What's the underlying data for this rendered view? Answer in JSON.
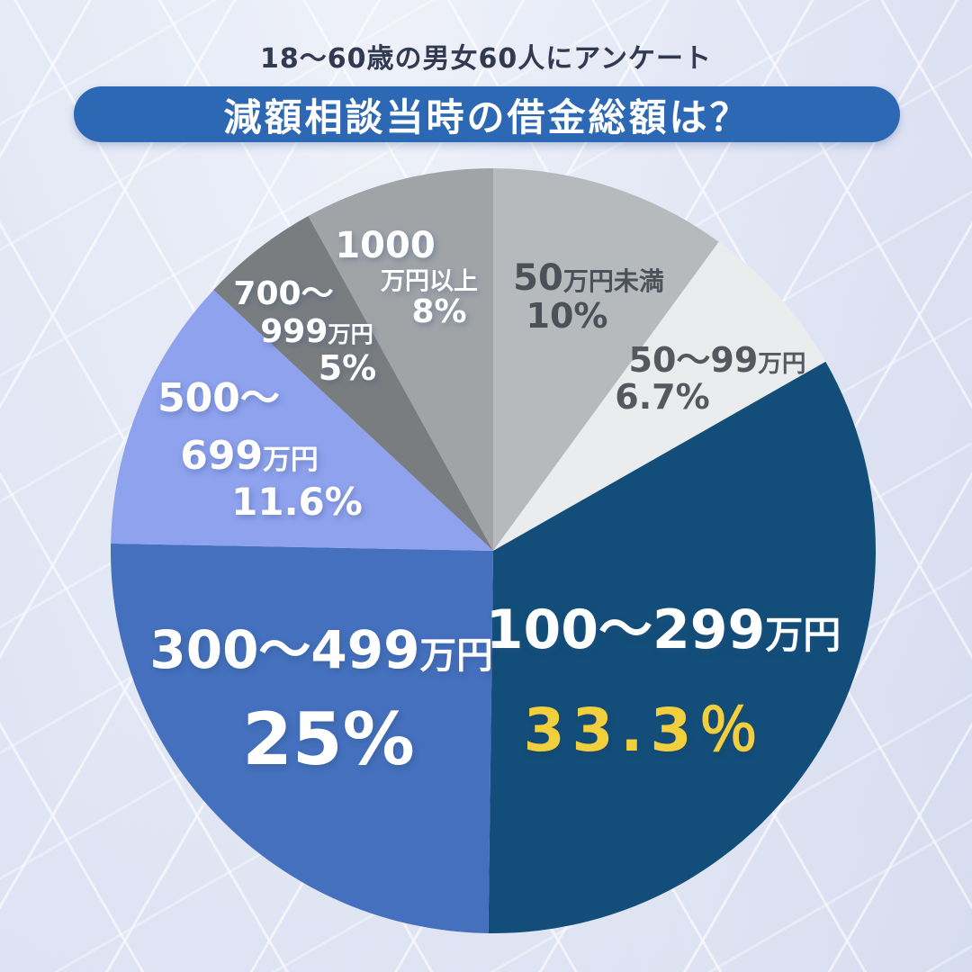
{
  "header": {
    "subtitle": "18〜60歳の男女60人にアンケート",
    "title": "減額相談当時の借金総額は？"
  },
  "colors": {
    "banner_blue": "#2d68b4",
    "accent_yellow": "#f2cf3c",
    "navy_slice": "#124e79",
    "blue_slice": "#4470bd",
    "periwinkle_slice": "#8fa2ee"
  },
  "chart_data": {
    "type": "pie",
    "title": "減額相談当時の借金総額は？",
    "subtitle": "18〜60歳の男女60人にアンケート",
    "start_angle_deg": 0,
    "direction": "clockwise",
    "segments": [
      {
        "label": "50万円未満",
        "value": 10,
        "display_pct": "10%",
        "color": "#b7babd"
      },
      {
        "label": "50〜99万円",
        "value": 6.7,
        "display_pct": "6.7%",
        "color": "#ebecee"
      },
      {
        "label": "100〜299万円",
        "value": 33.3,
        "display_pct": "33.3%",
        "color": "#124e79"
      },
      {
        "label": "300〜499万円",
        "value": 25,
        "display_pct": "25%",
        "color": "#4470bd"
      },
      {
        "label": "500〜699万円",
        "value": 11.6,
        "display_pct": "11.6%",
        "color": "#8fa2ee"
      },
      {
        "label": "700〜999万円",
        "value": 5,
        "display_pct": "5%",
        "color": "#7a7d80"
      },
      {
        "label": "1000万円以上",
        "value": 8,
        "display_pct": "8%",
        "color": "#a1a4a7"
      }
    ]
  },
  "labels": {
    "l50under": {
      "num": "50",
      "unit": "万円未満",
      "pct": "10%"
    },
    "l50_99": {
      "num": "50〜99",
      "unit": "万円",
      "pct": "6.7%"
    },
    "l100_299": {
      "num": "100〜299",
      "unit": "万円",
      "pct": "33.3％"
    },
    "l300_499": {
      "num": "300〜499",
      "unit": "万円",
      "pct": "25%"
    },
    "l500_699": {
      "num1": "500〜",
      "num2": "699",
      "unit": "万円",
      "pct": "11.6%"
    },
    "l700_999": {
      "num1": "700〜",
      "num2": "999",
      "unit": "万円",
      "pct": "5%"
    },
    "l1000": {
      "num": "1000",
      "unit": "万円以上",
      "pct": "8%"
    }
  }
}
